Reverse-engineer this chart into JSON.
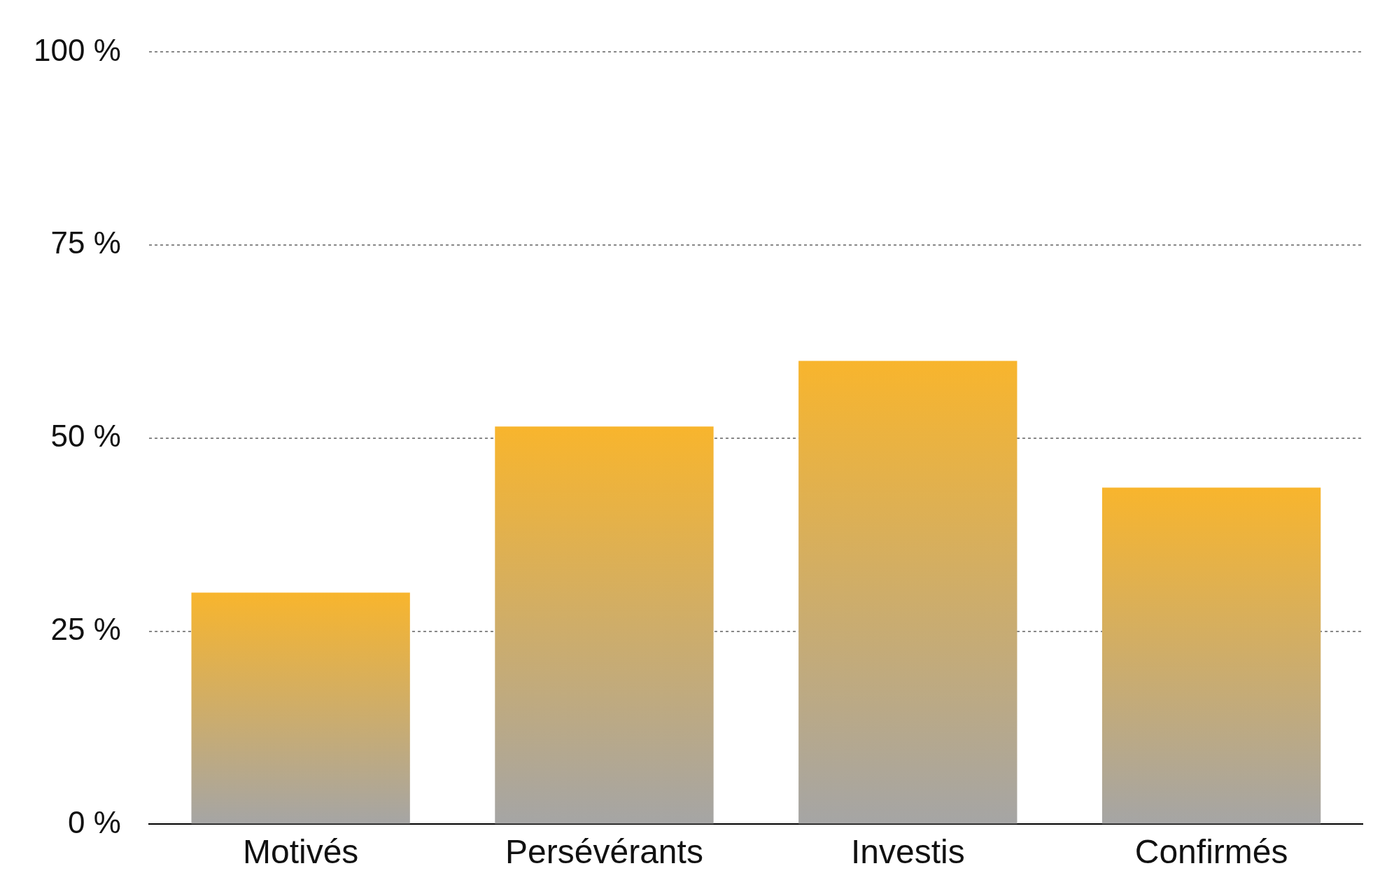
{
  "chart_data": {
    "type": "bar",
    "categories": [
      "Motivés",
      "Persévérants",
      "Investis",
      "Confirmés"
    ],
    "values": [
      30,
      51.5,
      60,
      43.6
    ],
    "color": "#f8b52d",
    "ylim": [
      0,
      100
    ],
    "yticks": [
      {
        "value": 0,
        "label": "0 %"
      },
      {
        "value": 25,
        "label": "25 %"
      },
      {
        "value": 50,
        "label": "50 %"
      },
      {
        "value": 75,
        "label": "75 %"
      },
      {
        "value": 100,
        "label": "100 %"
      }
    ],
    "grid": "y",
    "legend": false
  }
}
